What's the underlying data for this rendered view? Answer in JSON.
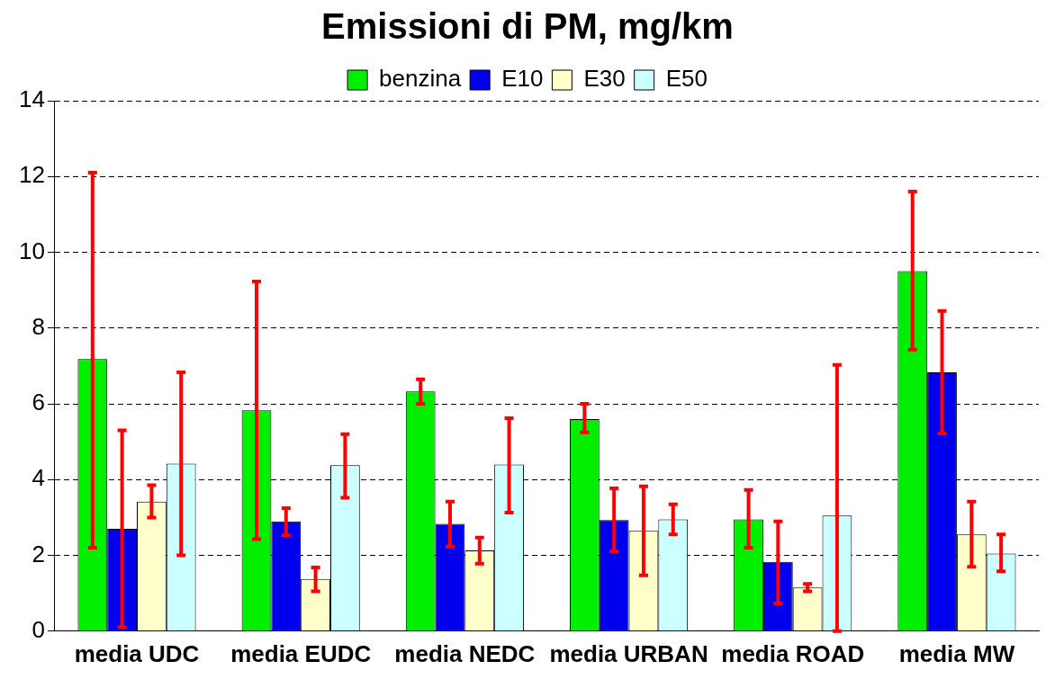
{
  "chart_data": {
    "type": "bar",
    "title": "Emissioni di PM, mg/km",
    "categories": [
      "media UDC",
      "media EUDC",
      "media NEDC",
      "media URBAN",
      "media ROAD",
      "media MW"
    ],
    "series": [
      {
        "name": "benzina",
        "color": "#00ee00",
        "values": [
          7.18,
          5.83,
          6.33,
          5.6,
          2.95,
          9.5
        ],
        "errors": [
          [
            2.2,
            12.1
          ],
          [
            2.43,
            9.23
          ],
          [
            6.0,
            6.65
          ],
          [
            5.25,
            6.0
          ],
          [
            2.2,
            3.73
          ],
          [
            7.43,
            11.6
          ]
        ]
      },
      {
        "name": "E10",
        "color": "#0000ee",
        "values": [
          2.7,
          2.9,
          2.83,
          2.93,
          1.83,
          6.83
        ],
        "errors": [
          [
            0.1,
            5.3
          ],
          [
            2.53,
            3.25
          ],
          [
            2.23,
            3.42
          ],
          [
            2.1,
            3.77
          ],
          [
            0.73,
            2.9
          ],
          [
            5.22,
            8.45
          ]
        ]
      },
      {
        "name": "E30",
        "color": "#ffffcc",
        "values": [
          3.42,
          1.38,
          2.13,
          2.65,
          1.15,
          2.55
        ],
        "errors": [
          [
            3.0,
            3.85
          ],
          [
            1.05,
            1.68
          ],
          [
            1.78,
            2.47
          ],
          [
            1.47,
            3.82
          ],
          [
            1.05,
            1.25
          ],
          [
            1.7,
            3.42
          ]
        ]
      },
      {
        "name": "E50",
        "color": "#ccffff",
        "values": [
          4.42,
          4.38,
          4.4,
          2.95,
          3.05,
          2.05
        ],
        "errors": [
          [
            2.0,
            6.83
          ],
          [
            3.52,
            5.2
          ],
          [
            3.13,
            5.62
          ],
          [
            2.55,
            3.35
          ],
          [
            0,
            7.03
          ],
          [
            1.58,
            2.55
          ]
        ]
      }
    ],
    "ylim": [
      0,
      14
    ],
    "yticks": [
      0,
      2,
      4,
      6,
      8,
      10,
      12,
      14
    ],
    "grid": "y",
    "legend": "top"
  }
}
